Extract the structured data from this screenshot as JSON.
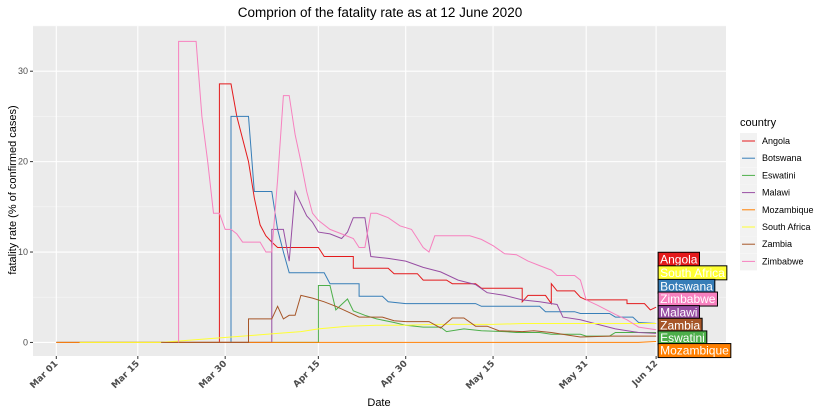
{
  "chart_data": {
    "type": "line",
    "title": "Comprion of the fatality rate as at 12 June 2020",
    "xlabel": "Date",
    "ylabel": "fatality rate (% of confirmed cases)",
    "x_ticks": [
      "Mar 01",
      "Mar 15",
      "Mar 30",
      "Apr 15",
      "Apr 30",
      "May 15",
      "May 31",
      "Jun 12"
    ],
    "x_tick_days": [
      0,
      14,
      29,
      45,
      60,
      75,
      91,
      103
    ],
    "y_ticks": [
      0,
      10,
      20,
      30
    ],
    "xlim_days": [
      -4,
      115
    ],
    "ylim": [
      -1.5,
      35
    ],
    "grid": true,
    "legend": {
      "title": "country",
      "position": "right"
    },
    "series": [
      {
        "name": "Angola",
        "color": "#E41A1C",
        "end_label": "Angola",
        "points": [
          [
            28,
            0
          ],
          [
            28,
            28.6
          ],
          [
            30,
            28.6
          ],
          [
            31,
            25
          ],
          [
            33,
            20
          ],
          [
            34,
            16
          ],
          [
            35,
            13
          ],
          [
            36,
            11.8
          ],
          [
            37,
            11.1
          ],
          [
            38,
            10.5
          ],
          [
            45,
            10.5
          ],
          [
            46,
            9.5
          ],
          [
            51,
            9.5
          ],
          [
            51,
            8.2
          ],
          [
            57,
            8.2
          ],
          [
            58,
            7.6
          ],
          [
            62,
            7.6
          ],
          [
            63,
            6.9
          ],
          [
            67,
            6.9
          ],
          [
            68,
            6.5
          ],
          [
            72,
            6.5
          ],
          [
            73,
            6
          ],
          [
            80,
            6
          ],
          [
            80,
            4.5
          ],
          [
            81,
            5.2
          ],
          [
            84,
            5.2
          ],
          [
            85,
            4.3
          ],
          [
            85,
            6.5
          ],
          [
            86,
            5.7
          ],
          [
            89,
            5.7
          ],
          [
            90,
            5
          ],
          [
            91,
            4.7
          ],
          [
            98,
            4.7
          ],
          [
            98,
            4.3
          ],
          [
            101,
            4.3
          ],
          [
            102,
            3.6
          ],
          [
            103,
            3.9
          ]
        ]
      },
      {
        "name": "Botswana",
        "color": "#377EB8",
        "end_label": "Botswana",
        "points": [
          [
            30,
            0
          ],
          [
            30,
            25
          ],
          [
            33,
            25
          ],
          [
            34,
            16.7
          ],
          [
            37,
            16.7
          ],
          [
            38,
            12.5
          ],
          [
            39,
            10
          ],
          [
            40,
            7.7
          ],
          [
            46,
            7.7
          ],
          [
            47,
            6.5
          ],
          [
            52,
            6.5
          ],
          [
            52,
            5.1
          ],
          [
            56,
            5.1
          ],
          [
            57,
            4.5
          ],
          [
            60,
            4.3
          ],
          [
            72,
            4.3
          ],
          [
            73,
            4
          ],
          [
            83,
            4
          ],
          [
            84,
            3.4
          ],
          [
            89,
            3.4
          ],
          [
            90,
            3.2
          ],
          [
            95,
            3.2
          ],
          [
            96,
            2.8
          ],
          [
            99,
            2.8
          ],
          [
            100,
            2.2
          ],
          [
            103,
            2.1
          ]
        ]
      },
      {
        "name": "Eswatini",
        "color": "#4DAF4A",
        "end_label": "Eswatini",
        "points": [
          [
            0,
            0
          ],
          [
            45,
            0
          ],
          [
            45,
            6.3
          ],
          [
            47,
            6.3
          ],
          [
            48,
            3.6
          ],
          [
            50,
            4.8
          ],
          [
            51,
            3.5
          ],
          [
            53,
            3
          ],
          [
            55,
            2.6
          ],
          [
            58,
            2.2
          ],
          [
            60,
            1.9
          ],
          [
            63,
            1.7
          ],
          [
            66,
            1.7
          ],
          [
            67,
            1.2
          ],
          [
            70,
            1.5
          ],
          [
            73,
            1.3
          ],
          [
            77,
            1.2
          ],
          [
            79,
            1.1
          ],
          [
            83,
            1.1
          ],
          [
            85,
            0.9
          ],
          [
            90,
            0.9
          ],
          [
            91,
            0.7
          ],
          [
            95,
            0.7
          ],
          [
            96,
            1.1
          ],
          [
            103,
            1.1
          ]
        ]
      },
      {
        "name": "Malawi",
        "color": "#984EA3",
        "end_label": "Malawi",
        "points": [
          [
            0,
            0
          ],
          [
            37,
            0
          ],
          [
            37,
            12.5
          ],
          [
            39,
            12.5
          ],
          [
            40,
            9
          ],
          [
            41,
            16.7
          ],
          [
            43,
            14
          ],
          [
            44,
            13.3
          ],
          [
            45,
            12.2
          ],
          [
            47,
            12
          ],
          [
            49,
            11.5
          ],
          [
            50,
            12.2
          ],
          [
            51,
            13.8
          ],
          [
            53,
            13.8
          ],
          [
            54,
            9.5
          ],
          [
            57,
            9.3
          ],
          [
            60,
            9
          ],
          [
            63,
            8.3
          ],
          [
            66,
            7.8
          ],
          [
            69,
            6.9
          ],
          [
            72,
            6.4
          ],
          [
            74,
            5.5
          ],
          [
            77,
            5.2
          ],
          [
            80,
            4.7
          ],
          [
            83,
            4.5
          ],
          [
            86,
            4.2
          ],
          [
            87,
            2.8
          ],
          [
            90,
            2.5
          ],
          [
            93,
            2.0
          ],
          [
            96,
            1.5
          ],
          [
            100,
            1.1
          ],
          [
            103,
            1.0
          ]
        ]
      },
      {
        "name": "Mozambique",
        "color": "#FF7F00",
        "end_label": "Mozambique",
        "points": [
          [
            0,
            0
          ],
          [
            100,
            0
          ],
          [
            103,
            0.1
          ]
        ]
      },
      {
        "name": "South Africa",
        "color": "#FFFF33",
        "end_label": "South Africa",
        "points": [
          [
            4,
            0
          ],
          [
            18,
            0
          ],
          [
            28,
            0.5
          ],
          [
            30,
            0.6
          ],
          [
            34,
            0.8
          ],
          [
            38,
            1
          ],
          [
            42,
            1.2
          ],
          [
            45,
            1.5
          ],
          [
            50,
            1.8
          ],
          [
            55,
            1.9
          ],
          [
            60,
            1.9
          ],
          [
            65,
            2
          ],
          [
            70,
            2
          ],
          [
            75,
            2
          ],
          [
            80,
            2.1
          ],
          [
            85,
            2.1
          ],
          [
            90,
            2.1
          ],
          [
            95,
            2.1
          ],
          [
            100,
            2.1
          ],
          [
            103,
            2.1
          ]
        ]
      },
      {
        "name": "Zambia",
        "color": "#A65628",
        "end_label": "Zambia",
        "points": [
          [
            18,
            0
          ],
          [
            33,
            0
          ],
          [
            33,
            2.6
          ],
          [
            37,
            2.6
          ],
          [
            38,
            4
          ],
          [
            39,
            2.6
          ],
          [
            40,
            3
          ],
          [
            41,
            3
          ],
          [
            42,
            5.2
          ],
          [
            44,
            4.9
          ],
          [
            46,
            4.5
          ],
          [
            48,
            4
          ],
          [
            50,
            3.4
          ],
          [
            52,
            2.8
          ],
          [
            56,
            2.8
          ],
          [
            58,
            2.4
          ],
          [
            60,
            2.3
          ],
          [
            64,
            2.3
          ],
          [
            66,
            1.6
          ],
          [
            68,
            2.7
          ],
          [
            70,
            2.7
          ],
          [
            72,
            1.8
          ],
          [
            74,
            1.8
          ],
          [
            76,
            1.3
          ],
          [
            80,
            1.2
          ],
          [
            82,
            1.3
          ],
          [
            85,
            1.1
          ],
          [
            88,
            0.8
          ],
          [
            90,
            0.6
          ],
          [
            95,
            0.7
          ],
          [
            100,
            0.7
          ],
          [
            103,
            0.7
          ]
        ]
      },
      {
        "name": "Zimbabwe",
        "color": "#F781BF",
        "end_label": "Zimbabwe",
        "points": [
          [
            21,
            0
          ],
          [
            21,
            33.3
          ],
          [
            24,
            33.3
          ],
          [
            25,
            25
          ],
          [
            26,
            20
          ],
          [
            27,
            14.3
          ],
          [
            28,
            14.3
          ],
          [
            29,
            12.5
          ],
          [
            30,
            12.5
          ],
          [
            31,
            12
          ],
          [
            32,
            11.1
          ],
          [
            35,
            11.1
          ],
          [
            36,
            10
          ],
          [
            37,
            10
          ],
          [
            38,
            18
          ],
          [
            39,
            27.3
          ],
          [
            40,
            27.3
          ],
          [
            41,
            23
          ],
          [
            42,
            20
          ],
          [
            43,
            16.7
          ],
          [
            44,
            14.3
          ],
          [
            45,
            13.5
          ],
          [
            47,
            12.5
          ],
          [
            49,
            12
          ],
          [
            51,
            11.5
          ],
          [
            52,
            10.5
          ],
          [
            53,
            10.5
          ],
          [
            54,
            14.3
          ],
          [
            55,
            14.3
          ],
          [
            57,
            13.8
          ],
          [
            59,
            12.9
          ],
          [
            61,
            12.5
          ],
          [
            62,
            11.5
          ],
          [
            63,
            10.5
          ],
          [
            64,
            10
          ],
          [
            65,
            11.8
          ],
          [
            71,
            11.8
          ],
          [
            73,
            11.4
          ],
          [
            75,
            10.7
          ],
          [
            77,
            9.8
          ],
          [
            79,
            9.7
          ],
          [
            81,
            9
          ],
          [
            83,
            8.5
          ],
          [
            85,
            8
          ],
          [
            86,
            7.4
          ],
          [
            89,
            7.4
          ],
          [
            90,
            6.9
          ],
          [
            91,
            4.7
          ],
          [
            93,
            4.1
          ],
          [
            96,
            3.1
          ],
          [
            98,
            2.5
          ],
          [
            100,
            1.7
          ],
          [
            103,
            1.4
          ]
        ]
      }
    ],
    "end_labels_order": [
      "Angola",
      "South Africa",
      "Botswana",
      "Zimbabwe",
      "Malawi",
      "Zambia",
      "Eswatini",
      "Mozambique"
    ],
    "end_label_values": [
      9.2,
      7.7,
      6.2,
      4.8,
      3.3,
      1.9,
      0.5,
      -0.9
    ]
  }
}
